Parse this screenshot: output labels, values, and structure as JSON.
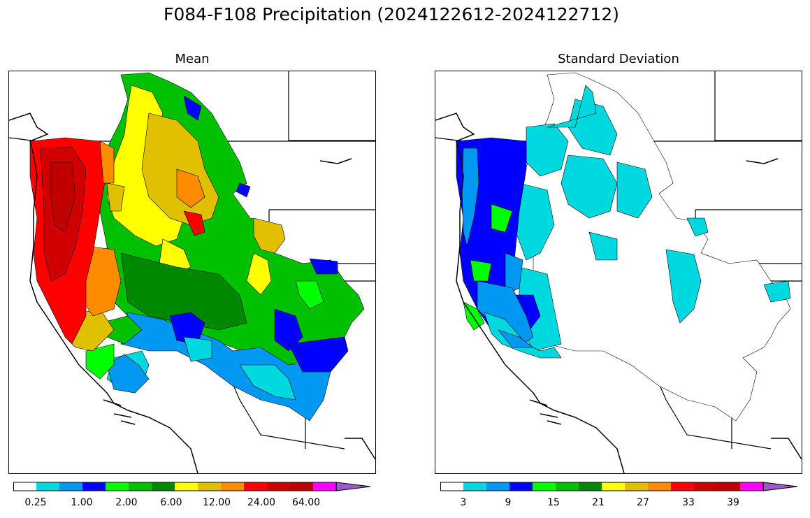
{
  "figure": {
    "title": "F084-F108 Precipitation (2024122612-2024122712)"
  },
  "panels": [
    {
      "name": "mean",
      "title": "Mean",
      "colorbar": {
        "colors": [
          "#ffffff",
          "#00d8e0",
          "#0098f0",
          "#0000ff",
          "#00ff00",
          "#00c000",
          "#008800",
          "#ffff00",
          "#e0c000",
          "#ff8c00",
          "#ff0000",
          "#d00000",
          "#c00000",
          "#ff00ff",
          "#9b59c9"
        ],
        "tick_labels": [
          "0.25",
          "1.00",
          "2.00",
          "6.00",
          "12.00",
          "24.00",
          "64.00"
        ],
        "extend": "max"
      }
    },
    {
      "name": "stddev",
      "title": "Standard Deviation",
      "colorbar": {
        "colors": [
          "#ffffff",
          "#00d8e0",
          "#0098f0",
          "#0000ff",
          "#00ff00",
          "#00c000",
          "#008800",
          "#ffff00",
          "#e0c000",
          "#ff8c00",
          "#ff0000",
          "#d00000",
          "#c00000",
          "#ff00ff",
          "#9b59c9"
        ],
        "tick_labels": [
          "3",
          "9",
          "15",
          "21",
          "27",
          "33",
          "39"
        ],
        "extend": "max"
      }
    }
  ]
}
